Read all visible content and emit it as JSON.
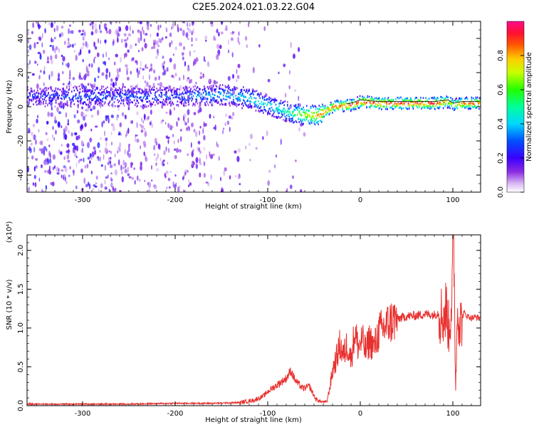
{
  "figure_title": "C2E5.2024.021.03.22.G04",
  "chart_data": [
    {
      "type": "heatmap",
      "title": "",
      "xlabel": "Height of straight line (km)",
      "ylabel": "Frequency (Hz)",
      "xlim": [
        -360,
        130
      ],
      "ylim": [
        -50,
        50
      ],
      "xticks": [
        -300,
        -200,
        -100,
        0,
        100
      ],
      "yticks": [
        -40,
        -20,
        0,
        20,
        40
      ],
      "colorbar": {
        "label": "Normalized spectral amplitude",
        "range": [
          0.0,
          1.0
        ],
        "ticks": [
          "0.0",
          "0.2",
          "0.4",
          "0.6",
          "0.8"
        ],
        "colormap": "rainbow (white-violet-blue-cyan-green-yellow-red-magenta)"
      },
      "ridge": {
        "description": "Spectral ridge centered near the frequency below; broad noisy scatter for heights < -130 km",
        "x": [
          -360,
          -300,
          -250,
          -200,
          -150,
          -120,
          -100,
          -80,
          -60,
          -45,
          -30,
          -10,
          0,
          20,
          50,
          80,
          95,
          100,
          110,
          130
        ],
        "y": [
          6,
          6,
          6,
          6,
          7,
          5,
          1,
          -3,
          -5,
          -5,
          0,
          1,
          3,
          2,
          2,
          2,
          3,
          1,
          2,
          2
        ],
        "peak_amplitude": [
          0.25,
          0.3,
          0.3,
          0.3,
          0.4,
          0.45,
          0.45,
          0.5,
          0.7,
          0.85,
          0.9,
          0.9,
          0.95,
          0.95,
          0.95,
          0.95,
          0.8,
          0.7,
          0.9,
          0.9
        ]
      }
    },
    {
      "type": "line",
      "title": "",
      "xlabel": "Height of straight line (km)",
      "ylabel": "SNR (10 * v/v)",
      "scale_note": "(x10⁴)",
      "xlim": [
        -360,
        130
      ],
      "ylim": [
        0.0,
        2.2
      ],
      "xticks": [
        -300,
        -200,
        -100,
        0,
        100
      ],
      "yticks": [
        "0.0",
        "0.5",
        "1.0",
        "1.5",
        "2.0"
      ],
      "series": [
        {
          "name": "SNR",
          "color": "#e8302e",
          "x": [
            -360,
            -300,
            -250,
            -200,
            -160,
            -130,
            -115,
            -105,
            -98,
            -92,
            -86,
            -80,
            -75,
            -70,
            -62,
            -55,
            -48,
            -42,
            -36,
            -32,
            -29,
            -26,
            -22,
            -18,
            -14,
            -10,
            -6,
            -2,
            2,
            6,
            10,
            15,
            20,
            25,
            30,
            35,
            40,
            50,
            60,
            70,
            80,
            85,
            90,
            93,
            96,
            99,
            101,
            103,
            105,
            108,
            112,
            116,
            120,
            125,
            130
          ],
          "y": [
            0.02,
            0.02,
            0.02,
            0.03,
            0.03,
            0.04,
            0.07,
            0.12,
            0.2,
            0.25,
            0.3,
            0.35,
            0.45,
            0.32,
            0.22,
            0.25,
            0.08,
            0.05,
            0.05,
            0.3,
            0.5,
            0.6,
            0.78,
            0.65,
            0.8,
            0.6,
            0.95,
            0.75,
            0.85,
            0.7,
            0.85,
            0.75,
            0.95,
            1.0,
            1.05,
            1.1,
            1.12,
            1.15,
            1.16,
            1.18,
            1.17,
            1.2,
            1.15,
            1.25,
            0.95,
            1.45,
            2.15,
            0.2,
            1.3,
            1.05,
            1.2,
            1.15,
            1.13,
            1.14,
            1.13
          ]
        }
      ]
    }
  ]
}
